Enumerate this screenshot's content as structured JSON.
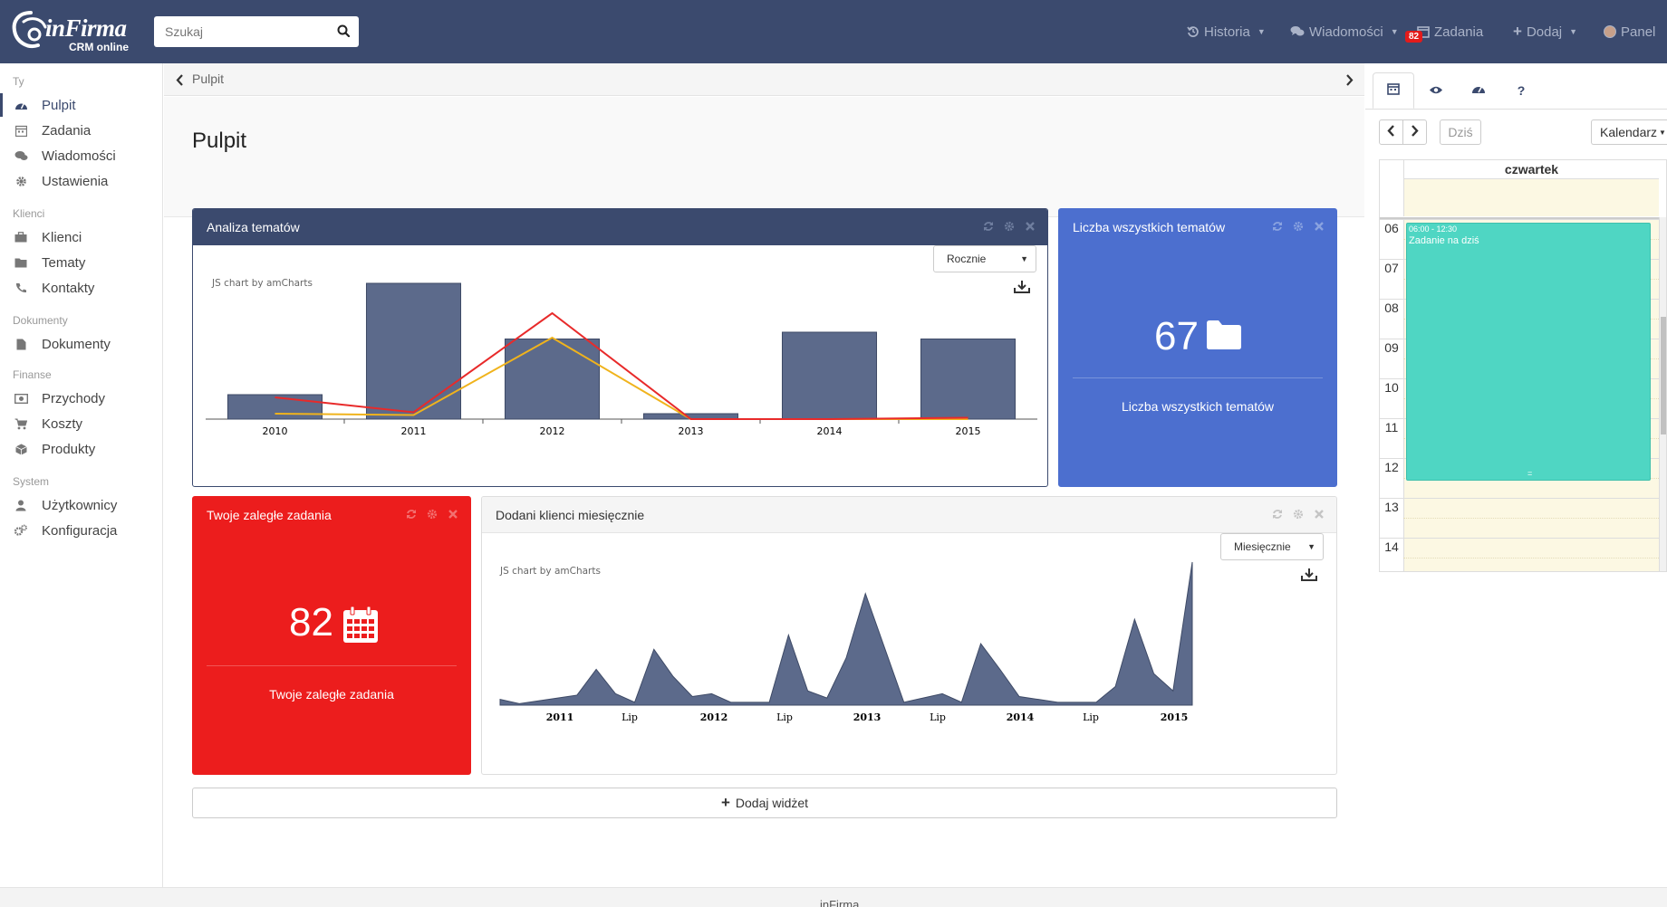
{
  "app": {
    "brand": "inFirma",
    "subtitle": "CRM online"
  },
  "search": {
    "placeholder": "Szukaj"
  },
  "nav": {
    "historia": "Historia",
    "wiadomosci": "Wiadomości",
    "zadania": "Zadania",
    "zadania_badge": "82",
    "dodaj": "Dodaj",
    "panel": "Panel"
  },
  "sidebar": {
    "sections": [
      "Ty",
      "Klienci",
      "Dokumenty",
      "Finanse",
      "System"
    ],
    "items": [
      {
        "label": "Pulpit",
        "icon": "dashboard-icon",
        "active": true
      },
      {
        "label": "Zadania",
        "icon": "calendar-icon"
      },
      {
        "label": "Wiadomości",
        "icon": "comments-icon"
      },
      {
        "label": "Ustawienia",
        "icon": "gear-icon"
      },
      {
        "label": "Klienci",
        "icon": "briefcase-icon"
      },
      {
        "label": "Tematy",
        "icon": "folder-icon"
      },
      {
        "label": "Kontakty",
        "icon": "phone-icon"
      },
      {
        "label": "Dokumenty",
        "icon": "file-icon"
      },
      {
        "label": "Przychody",
        "icon": "money-icon"
      },
      {
        "label": "Koszty",
        "icon": "cart-icon"
      },
      {
        "label": "Produkty",
        "icon": "cube-icon"
      },
      {
        "label": "Użytkownicy",
        "icon": "user-icon"
      },
      {
        "label": "Konfiguracja",
        "icon": "gears-icon"
      }
    ]
  },
  "breadcrumb": {
    "current": "Pulpit"
  },
  "page": {
    "title": "Pulpit"
  },
  "widgets": {
    "analiza": {
      "title": "Analiza tematów",
      "period": "Rocznie",
      "credit": "JS chart by amCharts",
      "header_color": "#3b4a6e"
    },
    "liczba": {
      "title": "Liczba wszystkich tematów",
      "value": "67",
      "label": "Liczba wszystkich tematów",
      "color": "#4c6fcf",
      "icon": "folder-icon"
    },
    "zalegle": {
      "title": "Twoje zaległe zadania",
      "value": "82",
      "label": "Twoje zaległe zadania",
      "color": "#ec1d1d",
      "icon": "calendar-icon"
    },
    "klienci": {
      "title": "Dodani klienci miesięcznie",
      "period": "Miesięcznie",
      "credit": "JS chart by amCharts"
    }
  },
  "add_widget": {
    "label": "Dodaj widżet"
  },
  "right_panel": {
    "tabs": [
      "calendar-icon",
      "eye-icon",
      "dashboard-icon",
      "question-icon"
    ],
    "today_label": "Dziś",
    "view_label": "Kalendarz",
    "day_header": "czwartek",
    "hours": [
      "06",
      "07",
      "08",
      "09",
      "10",
      "11",
      "12",
      "13",
      "14"
    ],
    "event": {
      "time": "06:00 - 12:30",
      "title": "Zadanie na dziś",
      "color": "#4fd6c3"
    }
  },
  "footer": {
    "text": "inFirma"
  },
  "chart_data": [
    {
      "type": "bar",
      "categories": [
        "2010",
        "2011",
        "2012",
        "2013",
        "2014",
        "2015"
      ],
      "ylim": [
        0,
        100
      ],
      "series": [
        {
          "values": [
            18,
            100,
            59,
            4,
            64,
            59
          ],
          "color": "#5c6a8b"
        },
        {
          "type": "line",
          "values": [
            4,
            3,
            60,
            0,
            0,
            0
          ],
          "color": "#f0b31c"
        },
        {
          "type": "line",
          "values": [
            16,
            5,
            78,
            0,
            0,
            1
          ],
          "color": "#e82a2a"
        }
      ],
      "grid": false
    },
    {
      "type": "area",
      "x_ticks": [
        "2011",
        "Lip",
        "2012",
        "Lip",
        "2013",
        "Lip",
        "2014",
        "Lip",
        "2015"
      ],
      "x_ticks_bold": [
        true,
        false,
        true,
        false,
        true,
        false,
        true,
        false,
        true
      ],
      "ylim": [
        0,
        100
      ],
      "series": [
        {
          "color": "#5c6a8b",
          "values": [
            4,
            1,
            3,
            5,
            7,
            25,
            8,
            2,
            39,
            20,
            6,
            8,
            2,
            2,
            2,
            49,
            10,
            5,
            33,
            78,
            40,
            2,
            5,
            8,
            2,
            43,
            25,
            6,
            4,
            2,
            2,
            2,
            13,
            60,
            22,
            10,
            100
          ]
        }
      ],
      "grid": false
    }
  ]
}
